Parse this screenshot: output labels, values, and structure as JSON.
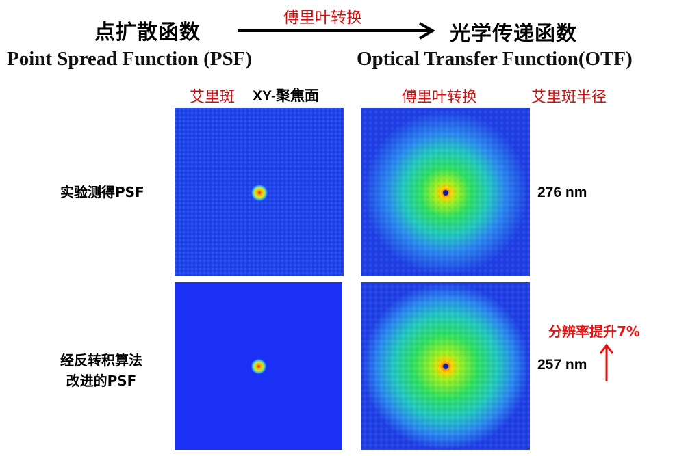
{
  "header": {
    "psf_cn": "点扩散函数",
    "psf_en": "Point Spread Function (PSF)",
    "arrow_label": "傅里叶转换",
    "otf_cn": "光学传递函数",
    "otf_en": "Optical Transfer Function(OTF)"
  },
  "column_labels": {
    "airy_spot": "艾里斑",
    "focal_plane": "XY-聚焦面",
    "fourier": "傅里叶转换",
    "airy_radius": "艾里斑半径"
  },
  "rows": [
    {
      "label_lines": [
        "实验测得PSF"
      ],
      "radius_value": "276 nm"
    },
    {
      "label_lines": [
        "经反转积算法",
        "改进的PSF"
      ],
      "radius_value": "257 nm"
    }
  ],
  "improvement": {
    "text": "分辨率提升7%",
    "arrow": "↑"
  },
  "colors": {
    "title_red": "#cc1111",
    "improve_red": "#ee1111",
    "panel_blue": "#1a3df0",
    "glow_green": "#22e07a"
  }
}
